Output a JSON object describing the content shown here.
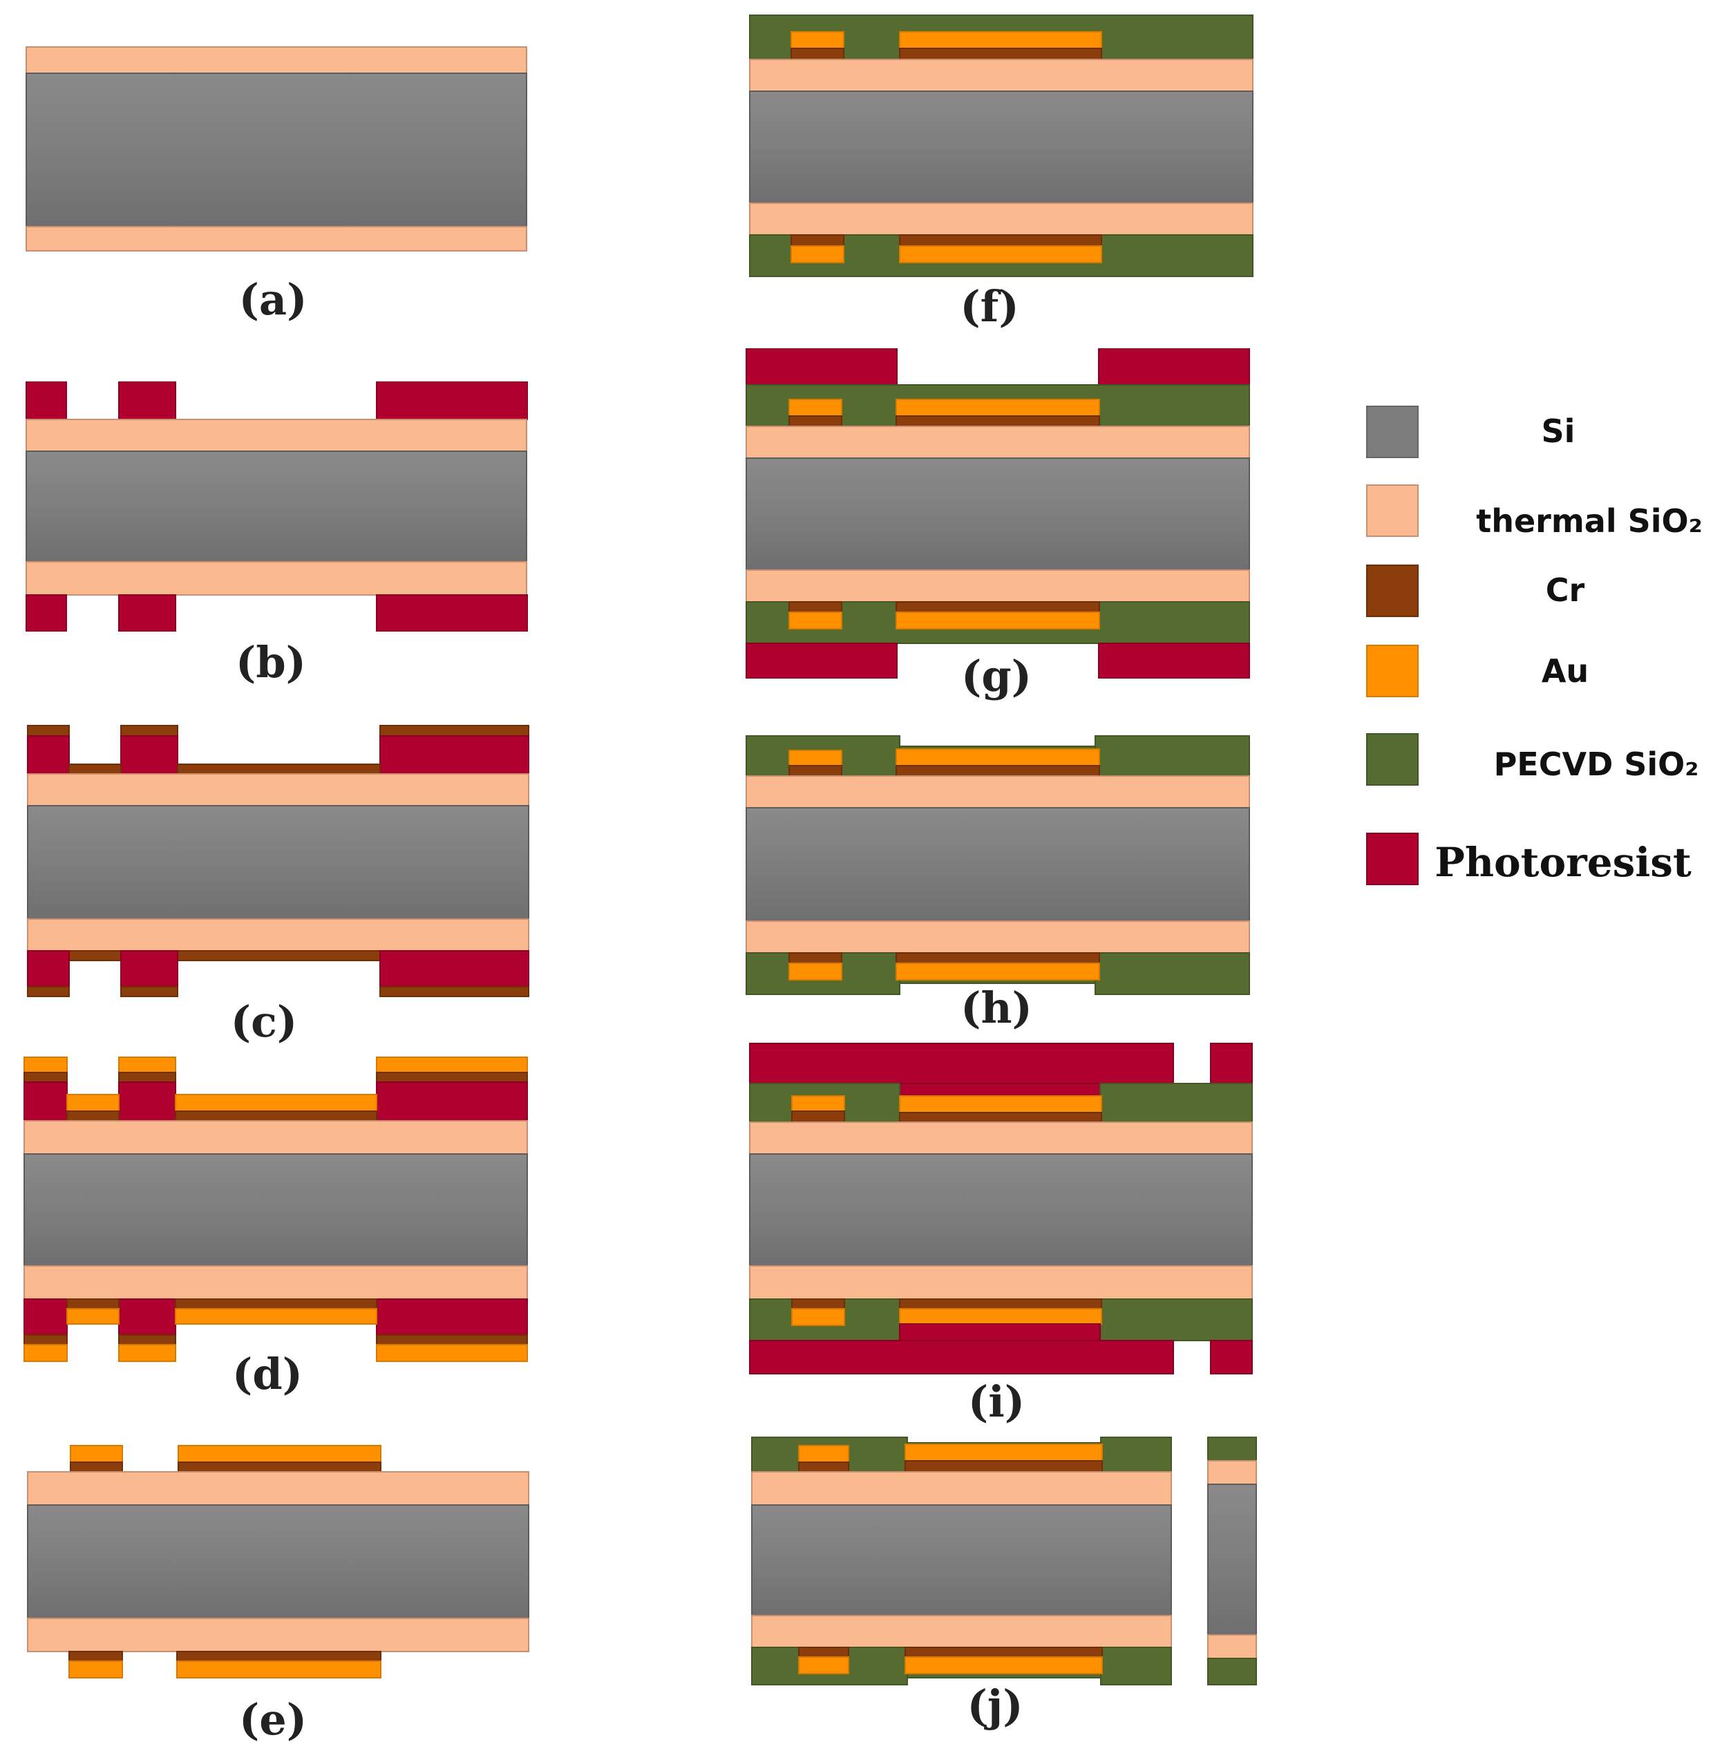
{
  "captions": {
    "a": "(a)",
    "b": "(b)",
    "c": "(c)",
    "d": "(d)",
    "e": "(e)",
    "f": "(f)",
    "g": "(g)",
    "h": "(h)",
    "i": "(i)",
    "j": "(j)"
  },
  "legend": {
    "si": "Si",
    "thermal_sio2": "thermal SiO₂",
    "cr": "Cr",
    "au": "Au",
    "pecvd_sio2": "PECVD SiO₂",
    "photoresist": "Photoresist"
  },
  "colors": {
    "si": "#7d7d7d",
    "thermal_sio2": "#fbb98f",
    "cr": "#8b3d0c",
    "au": "#ff9000",
    "pecvd_sio2": "#556b2f",
    "photoresist": "#b0002f"
  }
}
